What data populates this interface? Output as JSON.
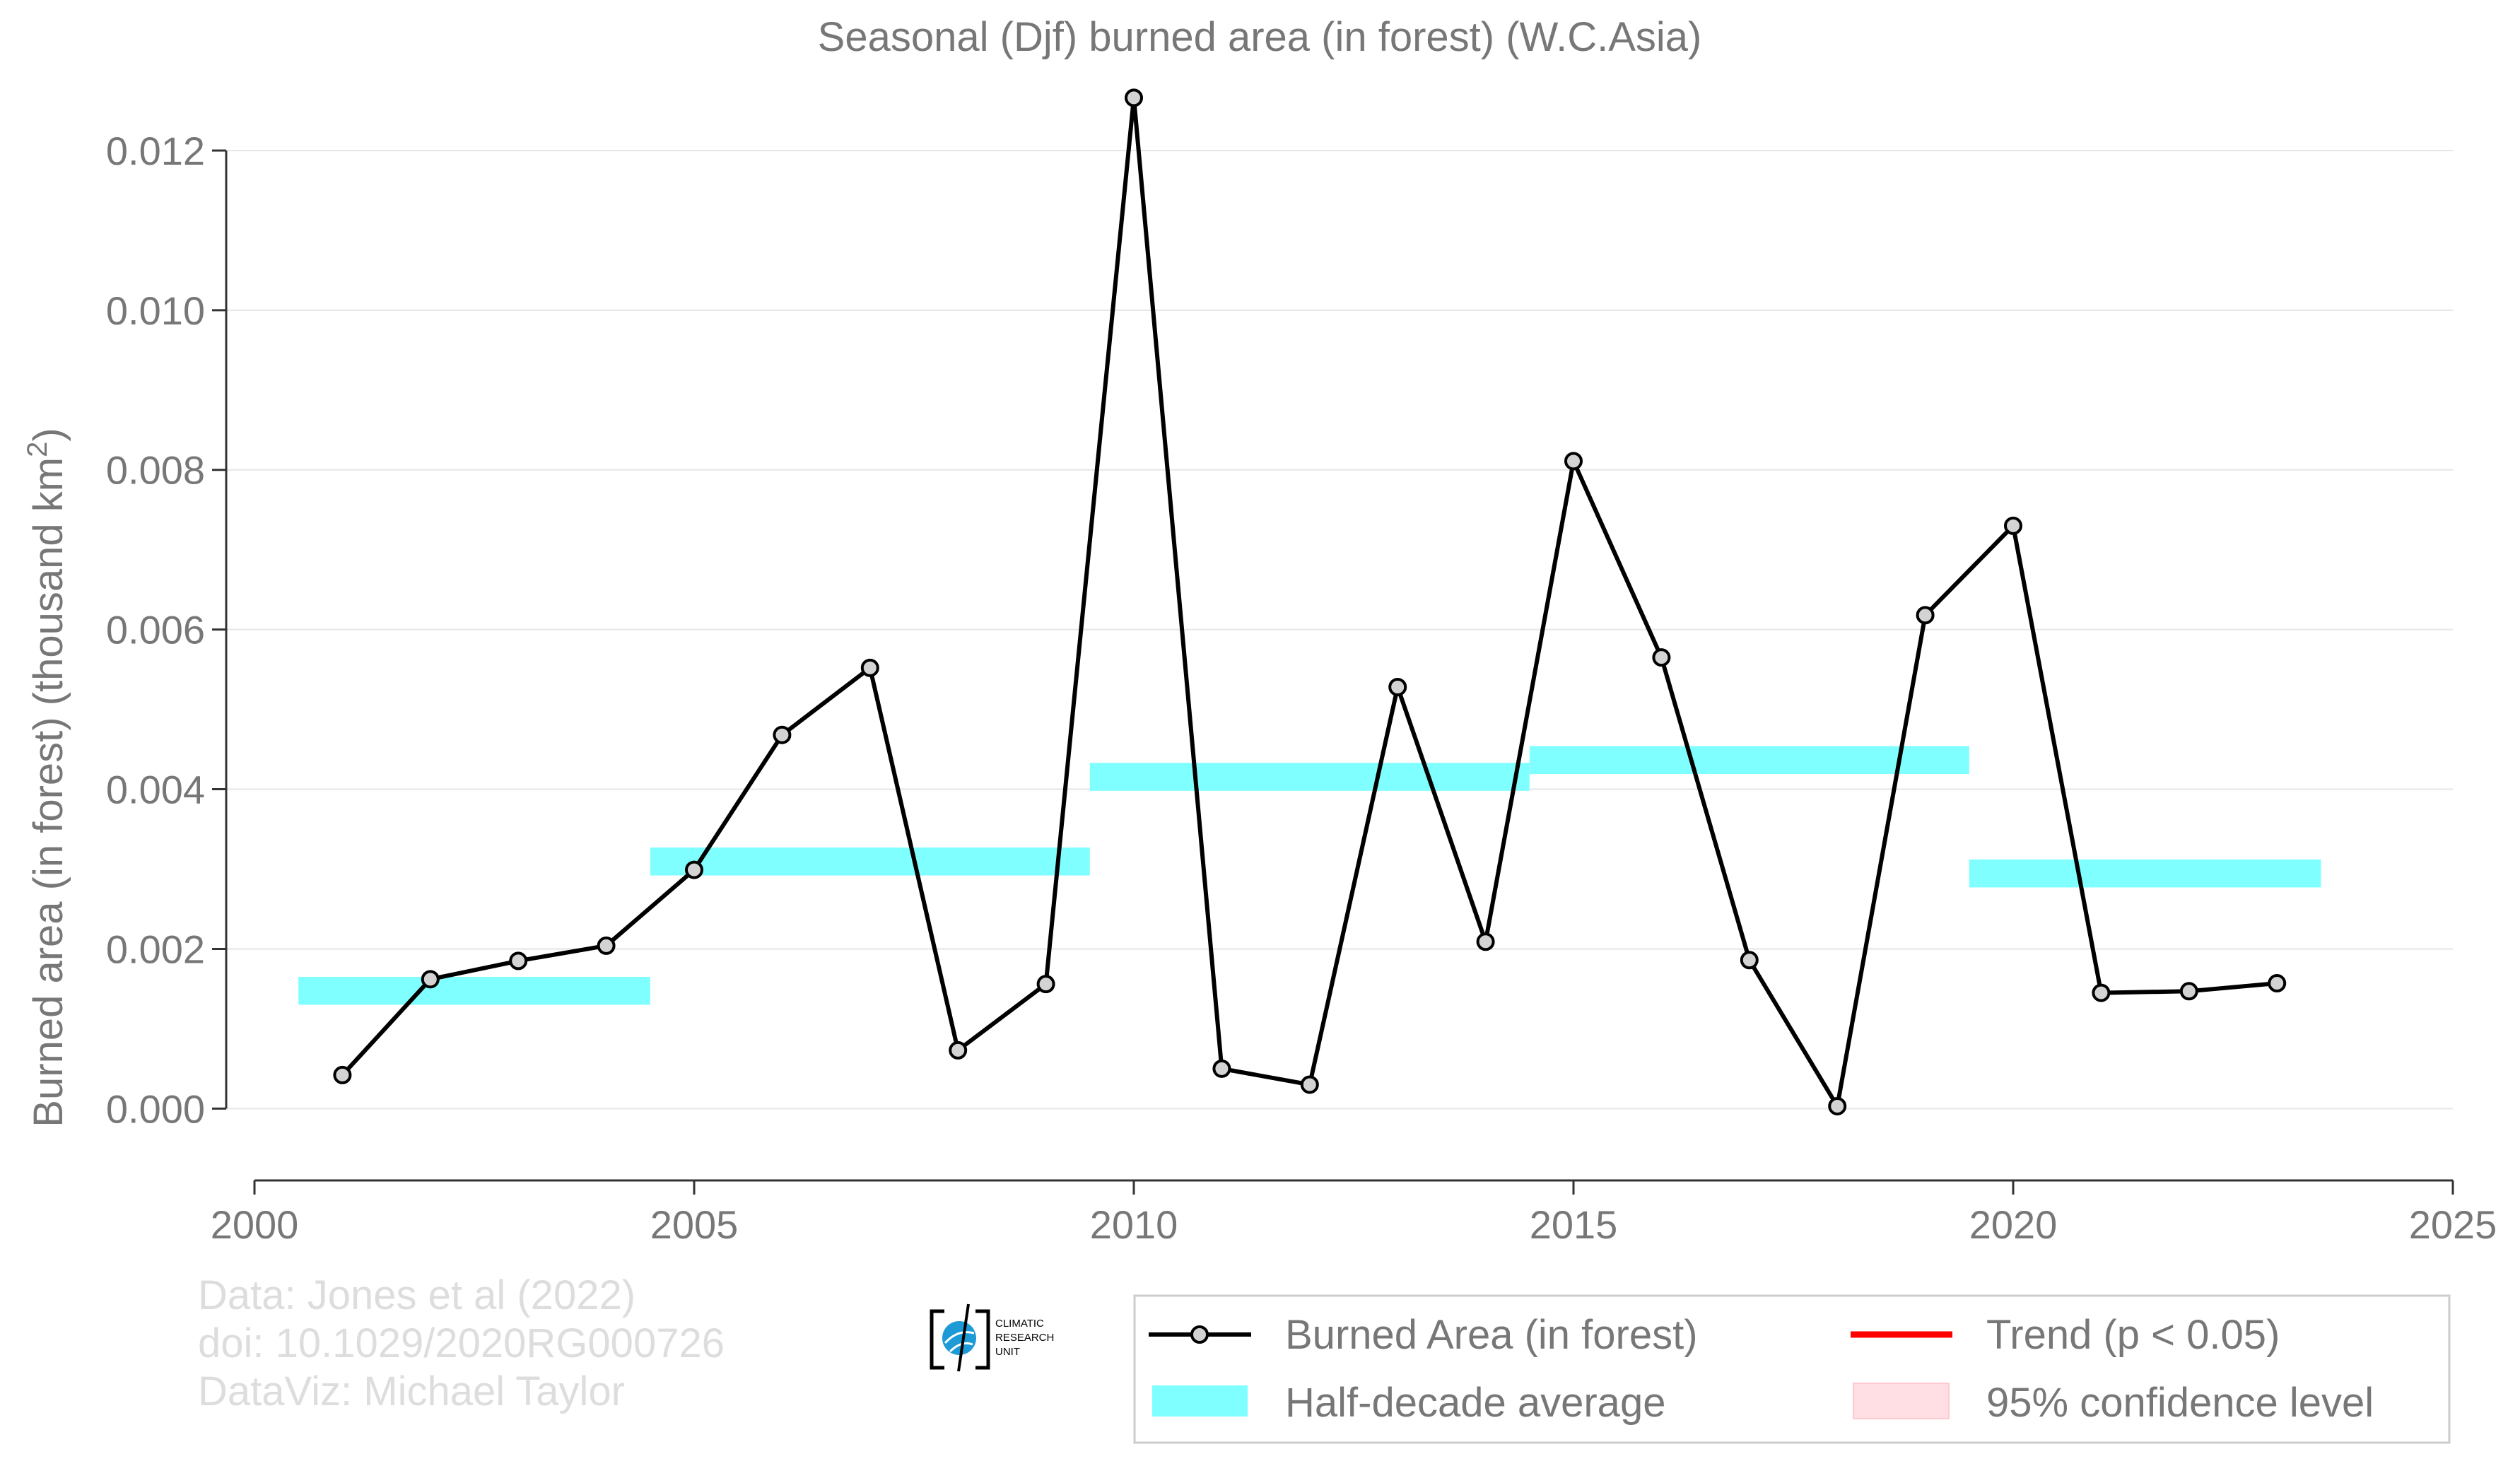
{
  "chart_data": {
    "type": "line",
    "title": "Seasonal (Djf) burned area (in forest) (W.C.Asia)",
    "ylabel": "Burned area (in forest) (thousand km",
    "ylabel_sup": "2",
    "ylabel_close": ")",
    "xlim": [
      2000,
      2025
    ],
    "ylim": [
      -0.0009,
      0.013
    ],
    "x_ticks": [
      2000,
      2005,
      2010,
      2015,
      2020,
      2025
    ],
    "x_tick_labels": [
      "2000",
      "2005",
      "2010",
      "2015",
      "2020",
      "2025"
    ],
    "y_ticks": [
      0,
      0.002,
      0.004,
      0.006,
      0.008,
      0.01,
      0.012
    ],
    "y_tick_labels": [
      "0.000",
      "0.002",
      "0.004",
      "0.006",
      "0.008",
      "0.010",
      "0.012"
    ],
    "grid": "horizontal",
    "series": [
      {
        "name": "Burned Area (in forest)",
        "color": "#000000",
        "marker_fill": "#d3d3d3",
        "x": [
          2001,
          2002,
          2003,
          2004,
          2005,
          2006,
          2007,
          2008,
          2009,
          2010,
          2011,
          2012,
          2013,
          2014,
          2015,
          2016,
          2017,
          2018,
          2019,
          2020,
          2021,
          2022,
          2023
        ],
        "y": [
          0.00042,
          0.00162,
          0.00185,
          0.00204,
          0.00299,
          0.00468,
          0.00552,
          0.00073,
          0.00156,
          0.01266,
          0.0005,
          0.0003,
          0.00528,
          0.00209,
          0.00811,
          0.00565,
          0.00186,
          3e-05,
          0.00618,
          0.0073,
          0.00145,
          0.00147,
          0.00157
        ]
      }
    ],
    "half_decade_average": {
      "name": "Half-decade average",
      "color": "#7fffff",
      "segments": [
        {
          "x_start": 2000.5,
          "x_end": 2004.5,
          "low": 0.0013,
          "high": 0.00165
        },
        {
          "x_start": 2004.5,
          "x_end": 2009.5,
          "low": 0.00292,
          "high": 0.00327
        },
        {
          "x_start": 2009.5,
          "x_end": 2014.5,
          "low": 0.00398,
          "high": 0.00433
        },
        {
          "x_start": 2014.5,
          "x_end": 2019.5,
          "low": 0.00419,
          "high": 0.00454
        },
        {
          "x_start": 2019.5,
          "x_end": 2023.5,
          "low": 0.00277,
          "high": 0.00312
        }
      ]
    },
    "legend": {
      "position": "bottom-right",
      "items": [
        {
          "label": "Burned Area (in forest)",
          "kind": "line-marker",
          "color": "#000000"
        },
        {
          "label": "Trend (p < 0.05)",
          "kind": "line",
          "color": "#ff0000"
        },
        {
          "label": "Half-decade average",
          "kind": "band",
          "color": "#7fffff"
        },
        {
          "label": "95% confidence level",
          "kind": "band",
          "color": "#ffdfe3"
        }
      ]
    },
    "credits": [
      "Data: Jones et al (2022)",
      "doi: 10.1029/2020RG000726",
      "DataViz: Michael Taylor"
    ],
    "logo_text": [
      "CLIMATIC",
      "RESEARCH",
      "UNIT"
    ]
  }
}
